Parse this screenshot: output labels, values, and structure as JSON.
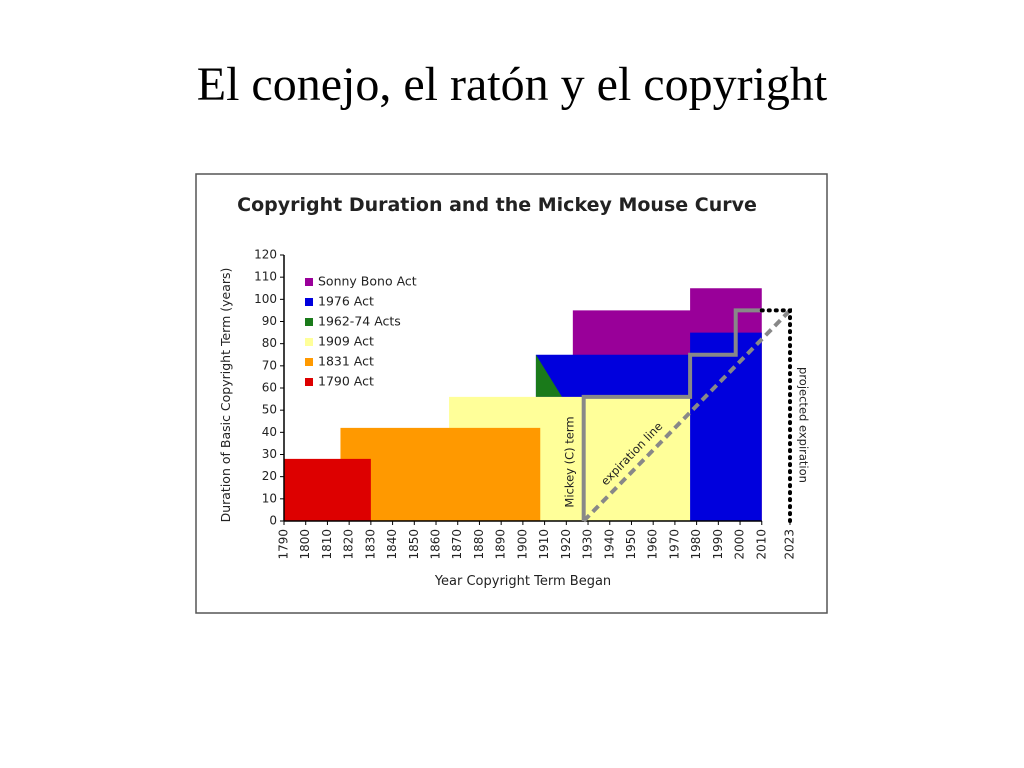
{
  "slide_title": "El conejo, el ratón y el copyright",
  "chart_data": {
    "type": "area",
    "title": "Copyright Duration and the Mickey Mouse Curve",
    "x_label": "Year Copyright Term Began",
    "y_label": "Duration of Basic Copyright Term (years)",
    "xlim": [
      1790,
      2023
    ],
    "ylim": [
      0,
      120
    ],
    "xticks": [
      1790,
      1800,
      1810,
      1820,
      1830,
      1840,
      1850,
      1860,
      1870,
      1880,
      1890,
      1900,
      1910,
      1920,
      1930,
      1940,
      1950,
      1960,
      1970,
      1980,
      1990,
      2000,
      2010,
      2023
    ],
    "yticks": [
      0,
      10,
      20,
      30,
      40,
      50,
      60,
      70,
      80,
      90,
      100,
      110,
      120
    ],
    "series": [
      {
        "name": "Sonny Bono Act",
        "color": "#990099",
        "x": [
          1923,
          1923,
          1977,
          1977,
          2010,
          2010
        ],
        "values": [
          0,
          95,
          95,
          105,
          105,
          0
        ]
      },
      {
        "name": "1976 Act",
        "color": "#0000dd",
        "x": [
          1906,
          1906,
          1977,
          1977,
          2010,
          2010
        ],
        "values": [
          0,
          75,
          75,
          85,
          85,
          0
        ]
      },
      {
        "name": "1962-74 Acts",
        "color": "#1a7a1a",
        "x": [
          1906,
          1906,
          1918
        ],
        "values": [
          56,
          75,
          56
        ]
      },
      {
        "name": "1909 Act",
        "color": "#ffff99",
        "x": [
          1866,
          1866,
          1977,
          1977
        ],
        "values": [
          0,
          56,
          56,
          0
        ]
      },
      {
        "name": "1831 Act",
        "color": "#ff9900",
        "x": [
          1816,
          1816,
          1908,
          1908
        ],
        "values": [
          0,
          42,
          42,
          0
        ]
      },
      {
        "name": "1790 Act",
        "color": "#dd0000",
        "x": [
          1790,
          1790,
          1830,
          1830
        ],
        "values": [
          0,
          28,
          28,
          0
        ]
      }
    ],
    "lines": [
      {
        "name": "Mickey (C) term",
        "color": "#888888",
        "style": "solid",
        "x": [
          1928,
          1928,
          1977,
          1977,
          1998,
          1998,
          2010
        ],
        "values": [
          0,
          56,
          56,
          75,
          75,
          95,
          95
        ]
      },
      {
        "name": "expiration line",
        "color": "#888888",
        "style": "dashed",
        "x": [
          1928,
          2023
        ],
        "values": [
          0,
          95
        ]
      },
      {
        "name": "projected expiration",
        "color": "#000000",
        "style": "dotted",
        "x": [
          2010,
          2023,
          2023
        ],
        "values": [
          95,
          95,
          0
        ]
      }
    ]
  }
}
